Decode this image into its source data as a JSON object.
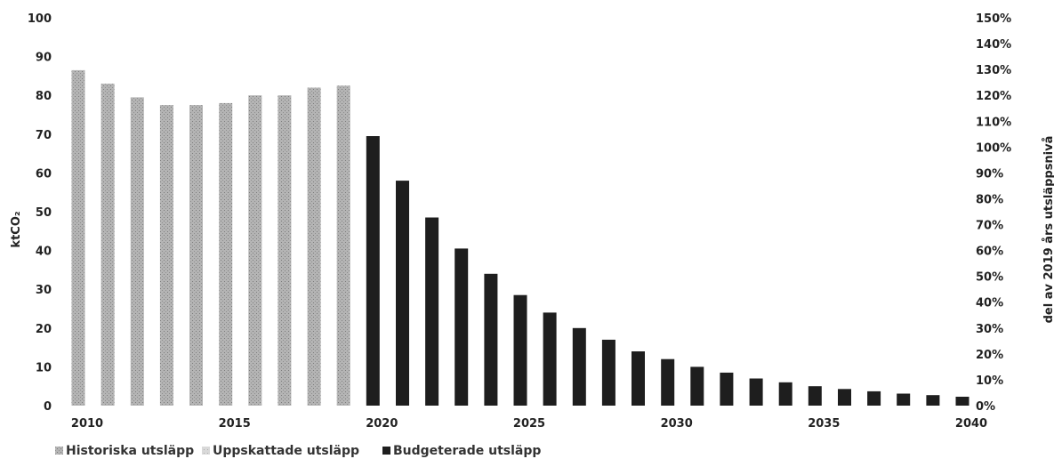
{
  "chart_data": {
    "type": "bar",
    "x": [
      2010,
      2011,
      2012,
      2013,
      2014,
      2015,
      2016,
      2017,
      2018,
      2019,
      2020,
      2021,
      2022,
      2023,
      2024,
      2025,
      2026,
      2027,
      2028,
      2029,
      2030,
      2031,
      2032,
      2033,
      2034,
      2035,
      2036,
      2037,
      2038,
      2039,
      2040
    ],
    "series": [
      {
        "name": "Historiska utsläpp",
        "color": "#a9a9a9",
        "values": [
          86.5,
          83,
          79.5,
          77.5,
          77.5,
          78,
          80,
          80,
          82,
          82.5,
          null,
          null,
          null,
          null,
          null,
          null,
          null,
          null,
          null,
          null,
          null,
          null,
          null,
          null,
          null,
          null,
          null,
          null,
          null,
          null,
          null
        ]
      },
      {
        "name": "Uppskattade utsläpp",
        "color": "#d6d6d6",
        "values": [
          null,
          null,
          null,
          null,
          null,
          null,
          null,
          null,
          null,
          null,
          null,
          null,
          null,
          null,
          null,
          null,
          null,
          null,
          null,
          null,
          null,
          null,
          null,
          null,
          null,
          null,
          null,
          null,
          null,
          null,
          null
        ]
      },
      {
        "name": "Budgeterade utsläpp",
        "color": "#1e1e1e",
        "values": [
          null,
          null,
          null,
          null,
          null,
          null,
          null,
          null,
          null,
          null,
          69.5,
          58,
          48.5,
          40.5,
          34,
          28.5,
          24,
          20,
          17,
          14,
          12,
          10,
          8.5,
          7,
          6,
          5,
          4.3,
          3.7,
          3.1,
          2.7,
          2.3
        ]
      }
    ],
    "x_tick_labels": [
      "2010",
      "2015",
      "2020",
      "2025",
      "2030",
      "2035",
      "2040"
    ],
    "y_tick_labels": [
      "0",
      "10",
      "20",
      "30",
      "40",
      "50",
      "60",
      "70",
      "80",
      "90",
      "100"
    ],
    "y2_tick_labels": [
      "0%",
      "10%",
      "20%",
      "30%",
      "40%",
      "50%",
      "60%",
      "70%",
      "80%",
      "90%",
      "100%",
      "110%",
      "120%",
      "130%",
      "140%",
      "150%"
    ],
    "ylabel": "ktCO₂",
    "y2label": "del av 2019 års utsläppsnivå",
    "ylim": [
      0,
      100
    ],
    "y2lim": [
      0,
      1.5
    ],
    "legend": [
      "Historiska utsläpp",
      "Uppskattade utsläpp",
      "Budgeterade utsläpp"
    ],
    "legend_position": "bottom-left",
    "grid": false
  }
}
